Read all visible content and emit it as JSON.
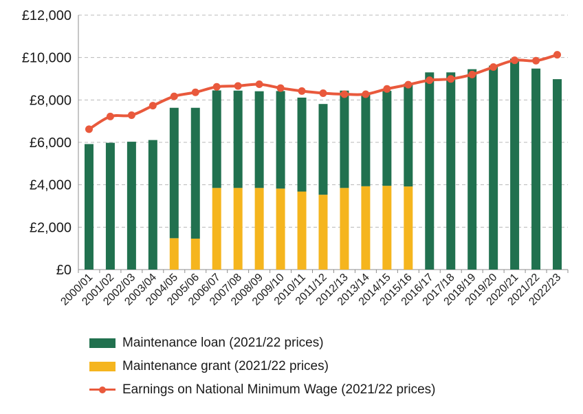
{
  "chart_data": {
    "type": "bar",
    "categories": [
      "2000/01",
      "2001/02",
      "2002/03",
      "2003/04",
      "2004/05",
      "2005/06",
      "2006/07",
      "2007/08",
      "2008/09",
      "2009/10",
      "2010/11",
      "2011/12",
      "2012/13",
      "2013/14",
      "2014/15",
      "2015/16",
      "2016/17",
      "2017/18",
      "2018/19",
      "2019/20",
      "2020/21",
      "2021/22",
      "2022/23"
    ],
    "series": [
      {
        "name": "Maintenance loan (2021/22 prices)",
        "kind": "bar",
        "color": "#21714f",
        "values": [
          5920,
          5980,
          6030,
          6110,
          6150,
          6170,
          4600,
          4590,
          4560,
          4600,
          4430,
          4280,
          4590,
          4380,
          4480,
          4850,
          9300,
          9300,
          9450,
          9620,
          9950,
          9480,
          8980
        ]
      },
      {
        "name": "Maintenance grant (2021/22 prices)",
        "kind": "bar",
        "color": "#f5b51e",
        "values": [
          0,
          0,
          0,
          0,
          1480,
          1460,
          3850,
          3850,
          3850,
          3820,
          3680,
          3530,
          3850,
          3930,
          3950,
          3920,
          0,
          0,
          0,
          0,
          0,
          0,
          0
        ]
      },
      {
        "name": "Earnings on National Minimum Wage (2021/22 prices)",
        "kind": "line",
        "color": "#e9593c",
        "values": [
          6620,
          7220,
          7280,
          7730,
          8170,
          8360,
          8620,
          8660,
          8740,
          8560,
          8420,
          8320,
          8270,
          8270,
          8520,
          8720,
          8930,
          8990,
          9200,
          9550,
          9870,
          9850,
          10130
        ]
      }
    ],
    "ylim": [
      0,
      12000
    ],
    "yticks": [
      0,
      2000,
      4000,
      6000,
      8000,
      10000,
      12000
    ],
    "ytick_labels": [
      "£0",
      "£2,000",
      "£4,000",
      "£6,000",
      "£8,000",
      "£10,000",
      "£12,000"
    ],
    "stacked": true,
    "grid": "horizontal dashed",
    "legend_position": "bottom",
    "title": "",
    "xlabel": "",
    "ylabel": ""
  }
}
